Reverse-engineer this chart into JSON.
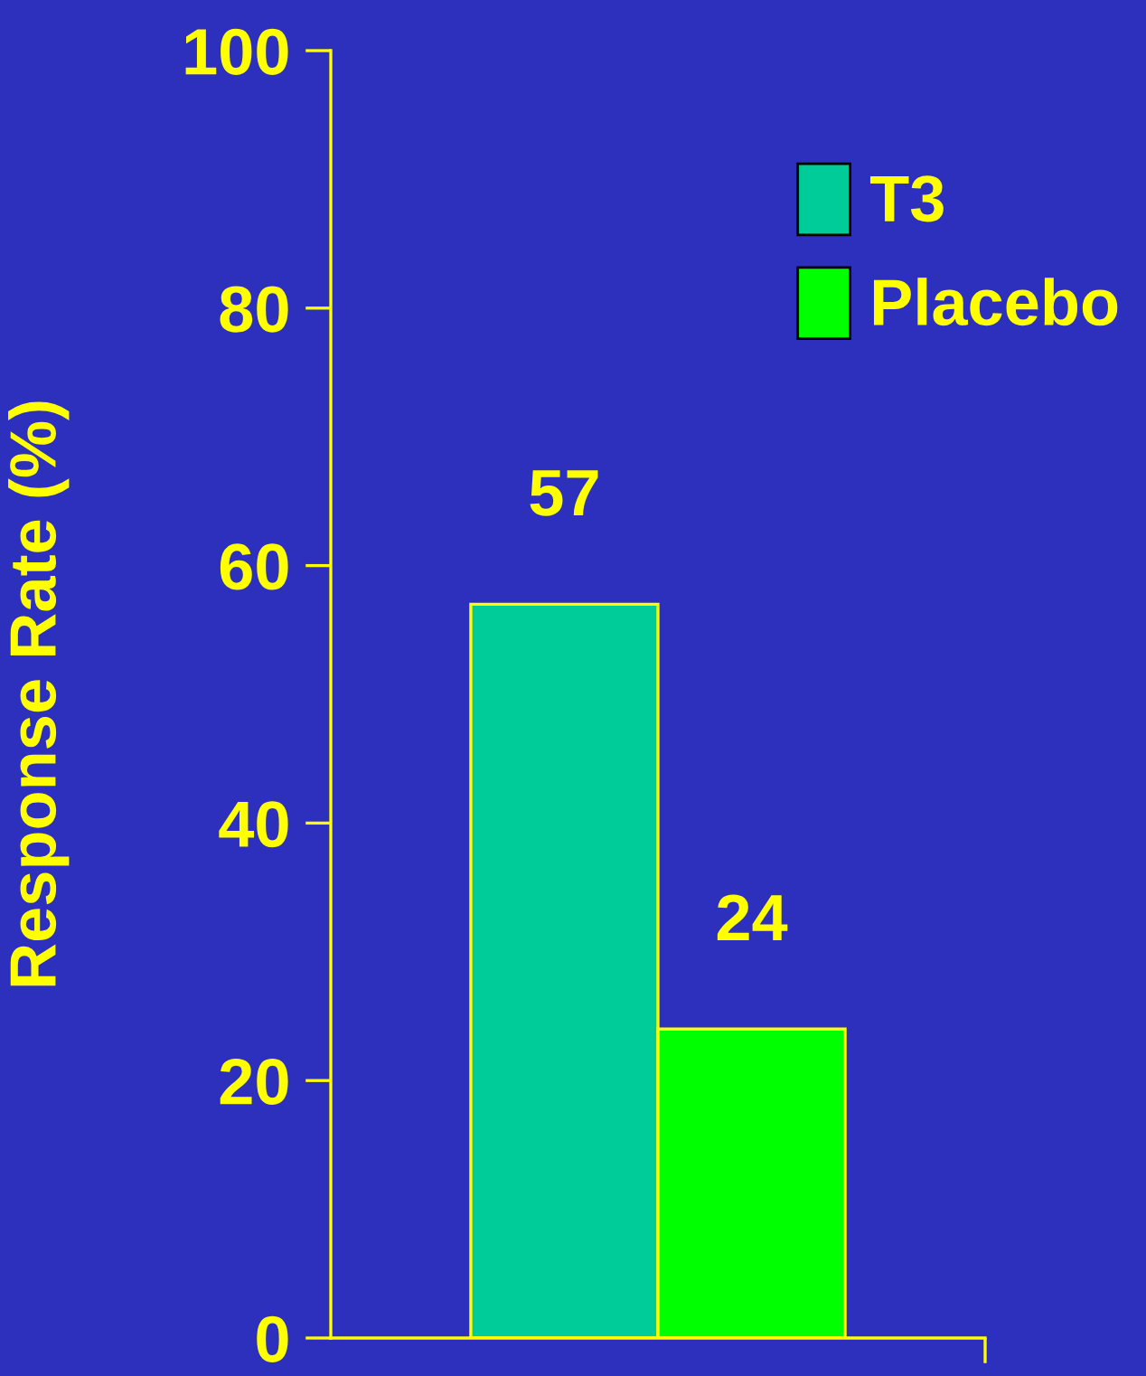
{
  "chart_data": {
    "type": "bar",
    "ylabel": "Response Rate (%)",
    "categories": [
      null
    ],
    "series": [
      {
        "name": "T3",
        "color": "#00cc99",
        "values": [
          57
        ]
      },
      {
        "name": "Placebo",
        "color": "#00ff00",
        "values": [
          24
        ]
      }
    ],
    "ylim": [
      0,
      100
    ],
    "yticks": [
      0,
      20,
      40,
      60,
      80,
      100
    ],
    "grid": false,
    "legend": "top right",
    "data_labels": true
  }
}
